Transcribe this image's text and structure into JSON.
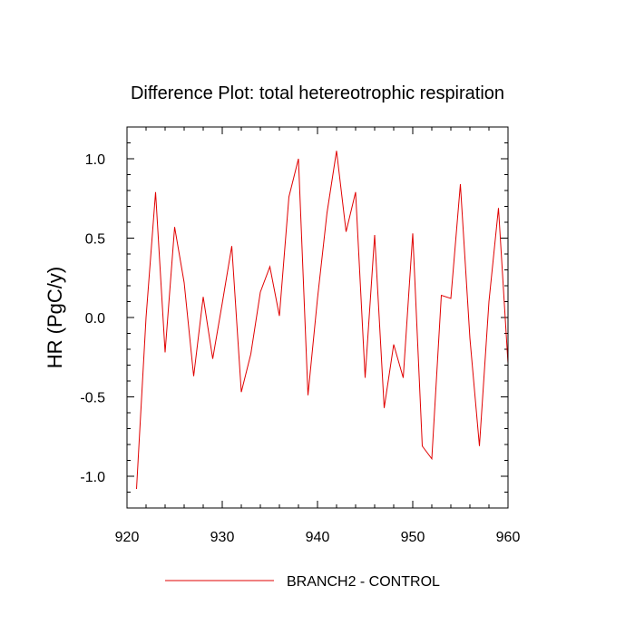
{
  "chart_data": {
    "type": "line",
    "title": "Difference Plot: total hetereotrophic respiration",
    "xlabel": "",
    "ylabel": "HR  (PgC/y)",
    "xlim": [
      920,
      960
    ],
    "ylim": [
      -1.2,
      1.2
    ],
    "x_ticks": [
      920,
      930,
      940,
      950,
      960
    ],
    "x_tick_labels": [
      "920",
      "930",
      "940",
      "950",
      "960"
    ],
    "y_ticks": [
      -1.0,
      -0.5,
      0.0,
      0.5,
      1.0
    ],
    "y_tick_labels": [
      "-1.0",
      "-0.5",
      "0.0",
      "0.5",
      "1.0"
    ],
    "grid": false,
    "legend_position": "bottom-center",
    "series": [
      {
        "name": "BRANCH2 - CONTROL",
        "color": "#e00000",
        "x": [
          921,
          922,
          923,
          924,
          925,
          926,
          927,
          928,
          929,
          930,
          931,
          932,
          933,
          934,
          935,
          936,
          937,
          938,
          939,
          940,
          941,
          942,
          943,
          944,
          945,
          946,
          947,
          948,
          949,
          950,
          951,
          952,
          953,
          954,
          955,
          956,
          957,
          958,
          959,
          960
        ],
        "values": [
          -1.08,
          0.0,
          0.79,
          -0.22,
          0.57,
          0.22,
          -0.37,
          0.13,
          -0.26,
          0.09,
          0.45,
          -0.47,
          -0.23,
          0.16,
          0.32,
          0.01,
          0.76,
          1.0,
          -0.49,
          0.12,
          0.66,
          1.05,
          0.54,
          0.79,
          -0.38,
          0.52,
          -0.57,
          -0.17,
          -0.38,
          0.53,
          -0.81,
          -0.89,
          0.14,
          0.12,
          0.84,
          -0.13,
          -0.81,
          0.1,
          0.69,
          -0.29
        ]
      }
    ]
  }
}
